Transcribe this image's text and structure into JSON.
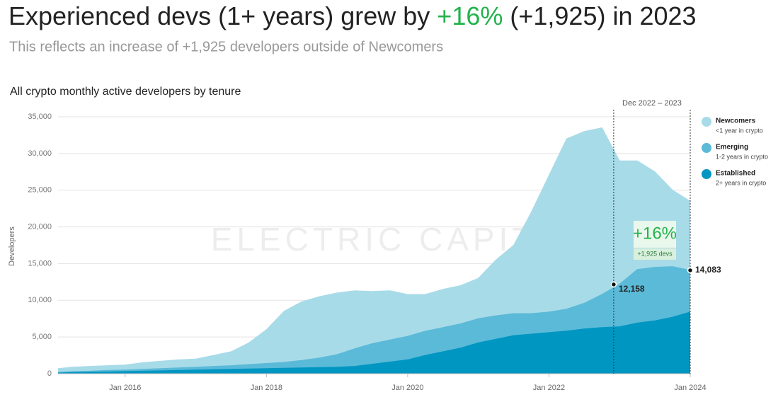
{
  "chart_data": {
    "type": "stacked-area",
    "title_parts": [
      "Experienced devs (1+ years) grew by ",
      "+16%",
      " (+1,925) in 2023"
    ],
    "title_highlight_color": "#22b24c",
    "subtitle": "This reflects an increase of +1,925 developers outside of Newcomers",
    "chart_label": "All crypto monthly active developers by tenure",
    "y_label": "Developers",
    "watermark": "ELECTRIC CAPITAL",
    "x": [
      "2015-01",
      "2015-04",
      "2015-07",
      "2015-10",
      "2016-01",
      "2016-04",
      "2016-07",
      "2016-10",
      "2017-01",
      "2017-04",
      "2017-07",
      "2017-10",
      "2018-01",
      "2018-04",
      "2018-07",
      "2018-10",
      "2019-01",
      "2019-04",
      "2019-07",
      "2019-10",
      "2020-01",
      "2020-04",
      "2020-07",
      "2020-10",
      "2021-01",
      "2021-04",
      "2021-07",
      "2021-10",
      "2022-01",
      "2022-04",
      "2022-07",
      "2022-10",
      "2023-01",
      "2023-04",
      "2023-07",
      "2023-10",
      "2024-01"
    ],
    "series": [
      {
        "name": "Established",
        "sub": "2+ years in crypto",
        "color": "#0096c2",
        "values": [
          100,
          150,
          200,
          250,
          300,
          350,
          400,
          450,
          500,
          550,
          600,
          650,
          700,
          750,
          800,
          850,
          900,
          1000,
          1300,
          1600,
          1900,
          2500,
          3000,
          3500,
          4200,
          4700,
          5200,
          5400,
          5600,
          5800,
          6100,
          6300,
          6400,
          6900,
          7200,
          7700,
          8400
        ]
      },
      {
        "name": "Emerging",
        "sub": "1-2 years in crypto",
        "color": "#5bbad8",
        "values": [
          100,
          150,
          150,
          200,
          200,
          250,
          300,
          350,
          400,
          450,
          500,
          600,
          700,
          800,
          1000,
          1300,
          1700,
          2400,
          2800,
          3000,
          3200,
          3300,
          3300,
          3300,
          3300,
          3200,
          3000,
          2800,
          2800,
          3000,
          3500,
          4500,
          5800,
          7300,
          7300,
          6900,
          5683
        ]
      },
      {
        "name": "Newcomers",
        "sub": "<1 year in crypto",
        "color": "#a8dbe8",
        "values": [
          500,
          600,
          650,
          650,
          700,
          900,
          1000,
          1100,
          1100,
          1500,
          1900,
          2950,
          4600,
          6950,
          8000,
          8350,
          8400,
          7900,
          7100,
          6700,
          5700,
          5000,
          5200,
          5200,
          5500,
          7600,
          9300,
          13800,
          18600,
          23200,
          23400,
          22700,
          16800,
          14800,
          13000,
          10400,
          9417
        ]
      }
    ],
    "xlim": [
      "2015-01",
      "2024-01"
    ],
    "xticks": [
      {
        "value": "2016-01",
        "label": "Jan 2016"
      },
      {
        "value": "2018-01",
        "label": "Jan 2018"
      },
      {
        "value": "2020-01",
        "label": "Jan 2020"
      },
      {
        "value": "2022-01",
        "label": "Jan 2022"
      },
      {
        "value": "2024-01",
        "label": "Jan 2024"
      }
    ],
    "ylim": [
      0,
      35000
    ],
    "yticks": [
      0,
      {
        "value": 5000,
        "label": "5,000"
      },
      {
        "value": 10000,
        "label": "10,000"
      },
      {
        "value": 15000,
        "label": "15,000"
      },
      {
        "value": 20000,
        "label": "20,000"
      },
      {
        "value": 25000,
        "label": "25,000"
      },
      {
        "value": 30000,
        "label": "30,000"
      },
      {
        "value": 35000,
        "label": "35,000"
      }
    ],
    "grid": true,
    "span": {
      "start": "2022-12",
      "end": "2024-01",
      "label": "Dec 2022 – 2023"
    },
    "markers": [
      {
        "x": "2022-12",
        "value": 12158,
        "label": "12,158"
      },
      {
        "x": "2024-01",
        "value": 14083,
        "label": "14,083"
      }
    ],
    "badge": {
      "big": "+16%",
      "small": "+1,925 devs"
    }
  }
}
